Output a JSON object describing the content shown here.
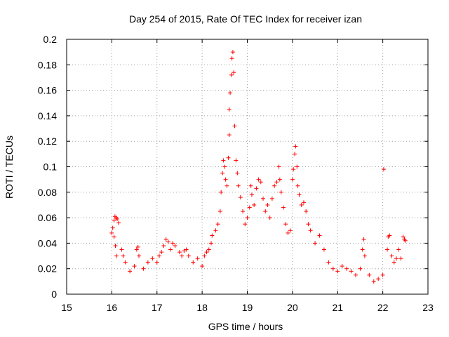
{
  "chart_data": {
    "type": "scatter",
    "title": "Day 254 of 2015, Rate Of TEC Index for receiver izan",
    "xlabel": "GPS time / hours",
    "ylabel": "ROTI / TECUs",
    "xlim": [
      15,
      23
    ],
    "ylim": [
      0,
      0.2
    ],
    "xticks": [
      "15",
      "16",
      "17",
      "18",
      "19",
      "20",
      "21",
      "22",
      "23"
    ],
    "yticks": [
      "0",
      "0.02",
      "0.04",
      "0.06",
      "0.08",
      "0.1",
      "0.12",
      "0.14",
      "0.16",
      "0.18",
      "0.2"
    ],
    "grid": true,
    "marker": "+",
    "color": "#ff0000",
    "series": [
      {
        "name": "ROTI",
        "points": [
          [
            16.0,
            0.048
          ],
          [
            16.02,
            0.052
          ],
          [
            16.05,
            0.058
          ],
          [
            16.07,
            0.061
          ],
          [
            16.1,
            0.06
          ],
          [
            16.12,
            0.059
          ],
          [
            16.15,
            0.056
          ],
          [
            16.05,
            0.045
          ],
          [
            16.08,
            0.038
          ],
          [
            16.1,
            0.03
          ],
          [
            16.22,
            0.035
          ],
          [
            16.25,
            0.03
          ],
          [
            16.3,
            0.025
          ],
          [
            16.4,
            0.018
          ],
          [
            16.5,
            0.022
          ],
          [
            16.55,
            0.035
          ],
          [
            16.58,
            0.037
          ],
          [
            16.6,
            0.03
          ],
          [
            16.7,
            0.02
          ],
          [
            16.8,
            0.025
          ],
          [
            16.9,
            0.028
          ],
          [
            17.0,
            0.025
          ],
          [
            17.05,
            0.03
          ],
          [
            17.1,
            0.033
          ],
          [
            17.15,
            0.038
          ],
          [
            17.2,
            0.043
          ],
          [
            17.25,
            0.041
          ],
          [
            17.3,
            0.035
          ],
          [
            17.35,
            0.04
          ],
          [
            17.4,
            0.038
          ],
          [
            17.5,
            0.033
          ],
          [
            17.55,
            0.03
          ],
          [
            17.6,
            0.034
          ],
          [
            17.65,
            0.035
          ],
          [
            17.7,
            0.03
          ],
          [
            17.8,
            0.025
          ],
          [
            17.9,
            0.028
          ],
          [
            18.0,
            0.022
          ],
          [
            18.05,
            0.03
          ],
          [
            18.1,
            0.033
          ],
          [
            18.15,
            0.035
          ],
          [
            18.2,
            0.04
          ],
          [
            18.22,
            0.046
          ],
          [
            18.3,
            0.05
          ],
          [
            18.35,
            0.055
          ],
          [
            18.4,
            0.065
          ],
          [
            18.42,
            0.08
          ],
          [
            18.45,
            0.095
          ],
          [
            18.47,
            0.105
          ],
          [
            18.5,
            0.1
          ],
          [
            18.52,
            0.09
          ],
          [
            18.55,
            0.085
          ],
          [
            18.58,
            0.107
          ],
          [
            18.6,
            0.125
          ],
          [
            18.6,
            0.145
          ],
          [
            18.62,
            0.158
          ],
          [
            18.65,
            0.172
          ],
          [
            18.66,
            0.185
          ],
          [
            18.68,
            0.19
          ],
          [
            18.7,
            0.174
          ],
          [
            18.72,
            0.132
          ],
          [
            18.75,
            0.105
          ],
          [
            18.78,
            0.095
          ],
          [
            18.8,
            0.085
          ],
          [
            18.85,
            0.076
          ],
          [
            18.9,
            0.065
          ],
          [
            18.95,
            0.055
          ],
          [
            19.0,
            0.06
          ],
          [
            19.05,
            0.068
          ],
          [
            19.08,
            0.085
          ],
          [
            19.1,
            0.078
          ],
          [
            19.15,
            0.07
          ],
          [
            19.2,
            0.083
          ],
          [
            19.25,
            0.09
          ],
          [
            19.3,
            0.088
          ],
          [
            19.35,
            0.075
          ],
          [
            19.4,
            0.065
          ],
          [
            19.45,
            0.07
          ],
          [
            19.5,
            0.06
          ],
          [
            19.55,
            0.075
          ],
          [
            19.6,
            0.085
          ],
          [
            19.65,
            0.088
          ],
          [
            19.7,
            0.1
          ],
          [
            19.72,
            0.09
          ],
          [
            19.75,
            0.08
          ],
          [
            19.8,
            0.068
          ],
          [
            19.85,
            0.055
          ],
          [
            19.9,
            0.048
          ],
          [
            19.95,
            0.05
          ],
          [
            20.0,
            0.09
          ],
          [
            20.02,
            0.098
          ],
          [
            20.05,
            0.11
          ],
          [
            20.07,
            0.116
          ],
          [
            20.1,
            0.1
          ],
          [
            20.12,
            0.085
          ],
          [
            20.15,
            0.078
          ],
          [
            20.2,
            0.07
          ],
          [
            20.25,
            0.072
          ],
          [
            20.3,
            0.065
          ],
          [
            20.35,
            0.055
          ],
          [
            20.4,
            0.05
          ],
          [
            20.5,
            0.04
          ],
          [
            20.6,
            0.046
          ],
          [
            20.7,
            0.035
          ],
          [
            20.8,
            0.025
          ],
          [
            20.9,
            0.02
          ],
          [
            21.0,
            0.018
          ],
          [
            21.1,
            0.022
          ],
          [
            21.2,
            0.02
          ],
          [
            21.3,
            0.018
          ],
          [
            21.4,
            0.015
          ],
          [
            21.5,
            0.02
          ],
          [
            21.55,
            0.035
          ],
          [
            21.58,
            0.043
          ],
          [
            21.6,
            0.03
          ],
          [
            21.7,
            0.015
          ],
          [
            21.8,
            0.01
          ],
          [
            21.9,
            0.012
          ],
          [
            22.0,
            0.015
          ],
          [
            22.02,
            0.098
          ],
          [
            22.1,
            0.035
          ],
          [
            22.12,
            0.045
          ],
          [
            22.15,
            0.046
          ],
          [
            22.2,
            0.03
          ],
          [
            22.25,
            0.025
          ],
          [
            22.3,
            0.028
          ],
          [
            22.35,
            0.035
          ],
          [
            22.4,
            0.028
          ],
          [
            22.45,
            0.045
          ],
          [
            22.48,
            0.043
          ],
          [
            22.5,
            0.042
          ]
        ]
      }
    ]
  }
}
